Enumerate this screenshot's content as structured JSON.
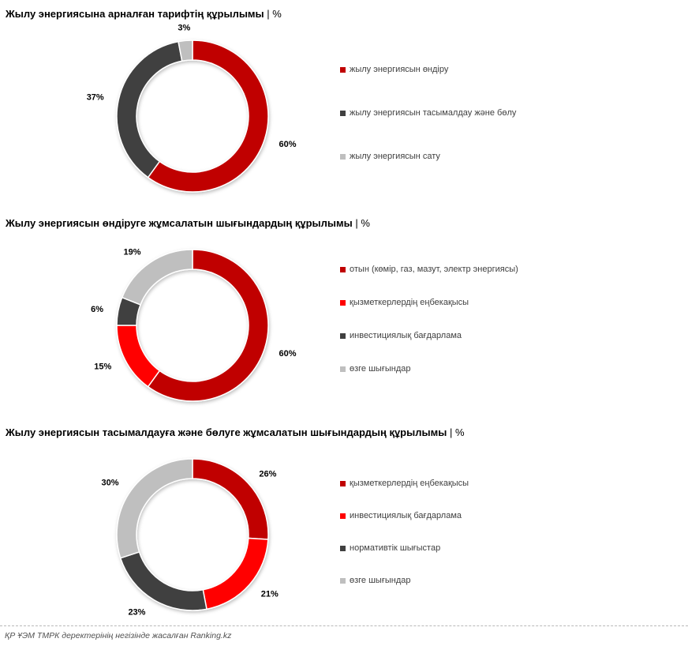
{
  "colors": {
    "dark_red": "#c00000",
    "bright_red": "#ff0000",
    "dark_gray": "#404040",
    "light_gray": "#bfbfbf"
  },
  "chart_data": [
    {
      "type": "pie",
      "variant": "donut",
      "title": "Жылу энергиясына арналған тарифтің құрылымы",
      "unit": "%",
      "legend_placement": "right",
      "categories": [
        "жылу энергиясын өндіру",
        "жылу энергиясын тасымалдау және бөлу",
        "жылу энергиясын сату"
      ],
      "values": [
        60,
        37,
        3
      ],
      "labels": [
        "60%",
        "37%",
        "3%"
      ],
      "colors": [
        "#c00000",
        "#404040",
        "#bfbfbf"
      ]
    },
    {
      "type": "pie",
      "variant": "donut",
      "title": "Жылу энергиясын өндіруге жұмсалатын шығындардың құрылымы",
      "unit": "%",
      "legend_placement": "right",
      "categories": [
        "отын (көмір, газ, мазут, электр энергиясы)",
        "қызметкерлердің еңбекақысы",
        "инвестициялық бағдарлама",
        "өзге шығындар"
      ],
      "values": [
        60,
        15,
        6,
        19
      ],
      "labels": [
        "60%",
        "15%",
        "6%",
        "19%"
      ],
      "colors": [
        "#c00000",
        "#ff0000",
        "#404040",
        "#bfbfbf"
      ]
    },
    {
      "type": "pie",
      "variant": "donut",
      "title": "Жылу энергиясын тасымалдауға және бөлуге жұмсалатын шығындардың құрылымы",
      "unit": "%",
      "legend_placement": "right",
      "categories": [
        "қызметкерлердің еңбекақысы",
        "инвестициялық бағдарлама",
        "нормативтік шығыстар",
        "өзге шығындар"
      ],
      "values": [
        26,
        21,
        23,
        30
      ],
      "labels": [
        "26%",
        "21%",
        "23%",
        "30%"
      ],
      "colors": [
        "#c00000",
        "#ff0000",
        "#404040",
        "#bfbfbf"
      ]
    }
  ],
  "footer": {
    "source": "ҚР ҰЭМ ТМРК деректерінің негізінде жасалған Ranking.kz"
  }
}
